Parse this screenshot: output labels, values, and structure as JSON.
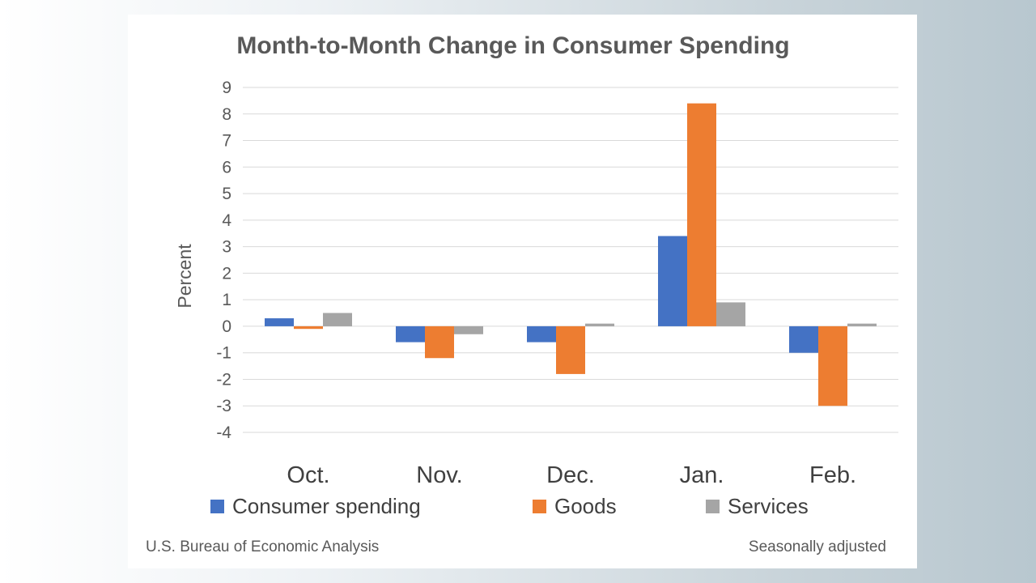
{
  "chart_data": {
    "type": "bar",
    "title": "Month-to-Month Change in Consumer Spending",
    "ylabel": "Percent",
    "xlabel": "",
    "ylim": [
      -4,
      9
    ],
    "yticks": [
      9,
      8,
      7,
      6,
      5,
      4,
      3,
      2,
      1,
      0,
      -1,
      -2,
      -3,
      -4
    ],
    "categories": [
      "Oct.",
      "Nov.",
      "Dec.",
      "Jan.",
      "Feb."
    ],
    "series": [
      {
        "name": "Consumer spending",
        "color": "#4472C4",
        "values": [
          0.3,
          -0.6,
          -0.6,
          3.4,
          -1.0
        ]
      },
      {
        "name": "Goods",
        "color": "#ED7D31",
        "values": [
          -0.1,
          -1.2,
          -1.8,
          8.4,
          -3.0
        ]
      },
      {
        "name": "Services",
        "color": "#A5A5A5",
        "values": [
          0.5,
          -0.3,
          0.1,
          0.9,
          0.1
        ]
      }
    ],
    "grid": true,
    "legend_position": "bottom",
    "source": "U.S. Bureau of Economic Analysis",
    "note": "Seasonally adjusted"
  }
}
